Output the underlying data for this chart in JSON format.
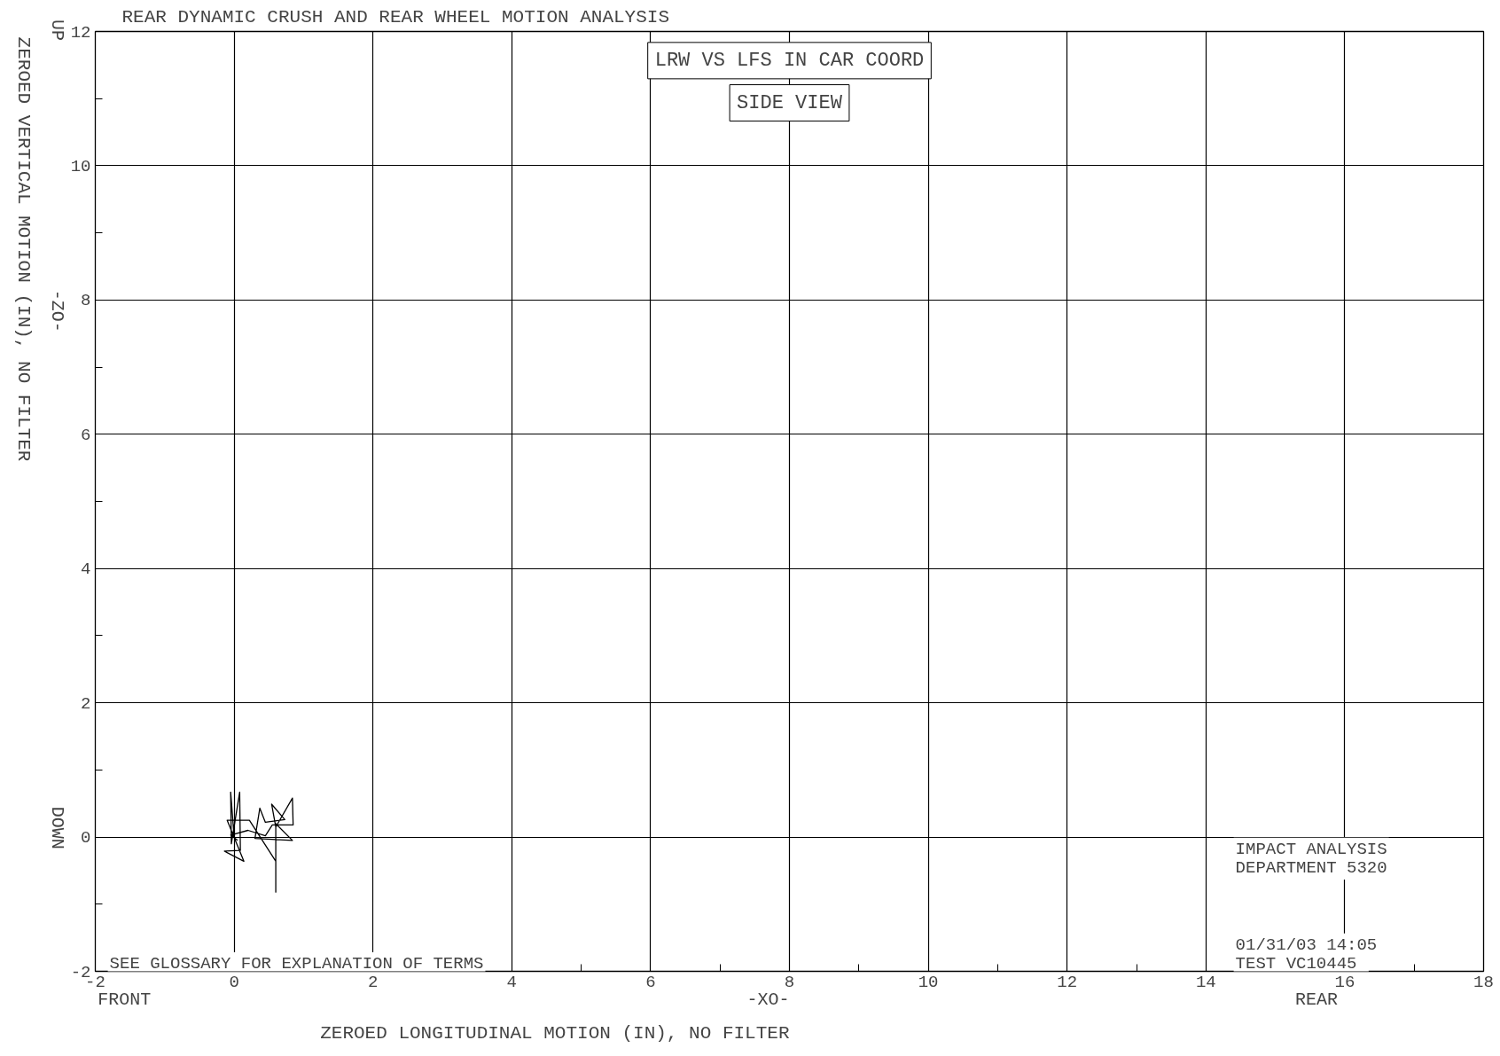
{
  "chart_data": {
    "type": "line",
    "title": "REAR DYNAMIC CRUSH AND REAR WHEEL MOTION ANALYSIS",
    "xlabel": "ZEROED LONGITUDINAL MOTION (IN), NO FILTER",
    "ylabel": "ZEROED VERTICAL MOTION (IN), NO FILTER",
    "annotations": [
      "LRW VS LFS IN CAR COORD",
      "SIDE VIEW",
      "SEE GLOSSARY FOR EXPLANATION OF TERMS",
      "IMPACT ANALYSIS",
      "DEPARTMENT 5320",
      "01/31/03  14:05",
      "TEST  VC10445",
      "FRONT",
      "-XO-",
      "REAR",
      "UP",
      "-ZO-",
      "DOWN"
    ],
    "series": [
      {
        "color": "#000000",
        "x": [
          0,
          -0.05,
          -0.04,
          0.08,
          0.09,
          -0.14,
          0.14,
          -0.1,
          0.22,
          0.6,
          0.6,
          0.6,
          0.84,
          0.3,
          0.37,
          0.45,
          0.73,
          0.54,
          0.6,
          0.84,
          0.85,
          0.55,
          0.45,
          0.2,
          -0.05,
          0.05
        ],
        "values": [
          0,
          0.67,
          -0.1,
          0.67,
          -0.2,
          -0.21,
          -0.36,
          0.25,
          0.25,
          -0.36,
          -0.82,
          0.2,
          -0.05,
          -0.02,
          0.43,
          0.22,
          0.26,
          0.49,
          0.15,
          0.58,
          0.18,
          0.18,
          0.02,
          0.1,
          0.03,
          -0.05
        ]
      }
    ],
    "xlim": [
      -2,
      18
    ],
    "xticks": [
      -2,
      0,
      2,
      4,
      6,
      8,
      10,
      12,
      14,
      16,
      18
    ],
    "ylim": [
      -2,
      12
    ],
    "yticks": [
      -2,
      0,
      2,
      4,
      6,
      8,
      10,
      12
    ],
    "grid": true,
    "marker": "none",
    "line_style": "solid"
  }
}
